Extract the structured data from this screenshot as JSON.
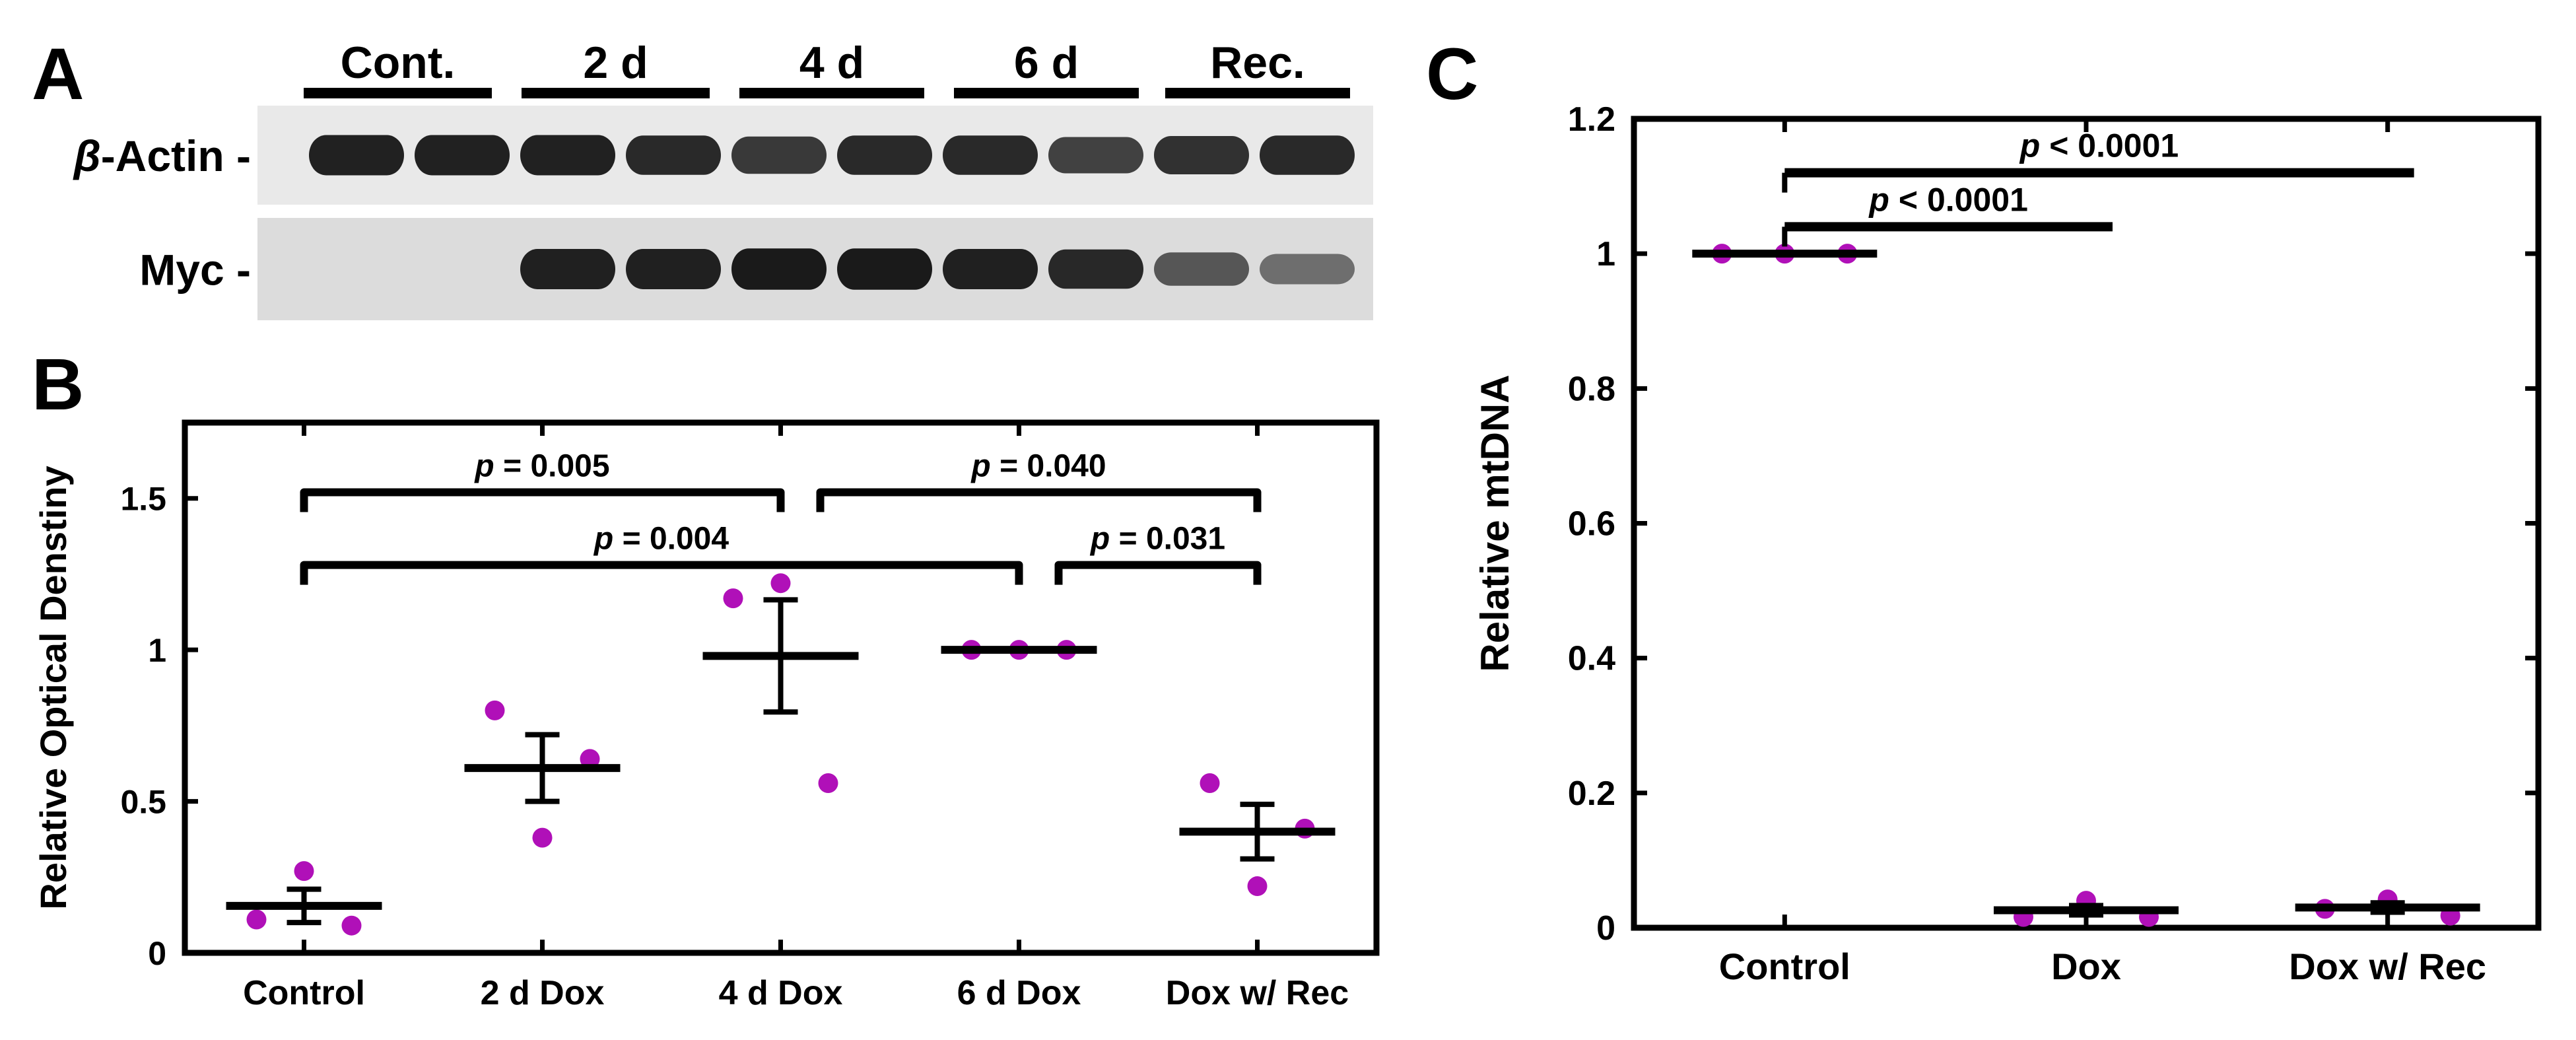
{
  "panels": {
    "a": "A",
    "b": "B",
    "c": "C"
  },
  "blot": {
    "groups": [
      "Cont.",
      "2 d",
      "4 d",
      "6 d",
      "Rec."
    ],
    "rows": [
      {
        "label_prefix": "β",
        "label_suffix": "-Actin -",
        "intensity": [
          0.9,
          0.9,
          0.9,
          0.85,
          0.75,
          0.85,
          0.85,
          0.7,
          0.8,
          0.85
        ]
      },
      {
        "label_prefix": "",
        "label_suffix": "Myc -",
        "intensity": [
          0.0,
          0.0,
          0.9,
          0.9,
          0.95,
          0.95,
          0.9,
          0.85,
          0.55,
          0.4
        ]
      }
    ]
  },
  "colors": {
    "point": "#b010b8",
    "line": "#000000",
    "blot_bg_actin": "#e9e9e9",
    "blot_bg_myc": "#dcdcdc",
    "band": "#1a1a1a"
  },
  "chart_data": [
    {
      "id": "B",
      "type": "scatter",
      "title": "",
      "xlabel": "",
      "ylabel": "Relative Optical Denstiny",
      "ylim": [
        0,
        1.75
      ],
      "yticks": [
        0,
        0.5,
        1,
        1.5
      ],
      "ytick_labels": [
        "0",
        "0.5",
        "1",
        "1.5"
      ],
      "categories": [
        "Control",
        "2 d Dox",
        "4 d Dox",
        "6 d Dox",
        "Dox w/ Rec"
      ],
      "points": [
        [
          0.11,
          0.27,
          0.09
        ],
        [
          0.8,
          0.38,
          0.64
        ],
        [
          1.17,
          1.22,
          0.56
        ],
        [
          1.0,
          1.0,
          1.0
        ],
        [
          0.56,
          0.22,
          0.41
        ]
      ],
      "mean": [
        0.155,
        0.61,
        0.98,
        1.0,
        0.4
      ],
      "sem": [
        0.055,
        0.11,
        0.185,
        0.0,
        0.09
      ],
      "comparisons": [
        {
          "from": 0,
          "to": 2,
          "level": 1.52,
          "label_prefix": "p",
          "label_suffix": " = 0.005"
        },
        {
          "from": 2,
          "to": 4,
          "level": 1.52,
          "label_prefix": "p",
          "label_suffix": " = 0.040"
        },
        {
          "from": 0,
          "to": 3,
          "level": 1.28,
          "label_prefix": "p",
          "label_suffix": " = 0.004"
        },
        {
          "from": 3,
          "to": 4,
          "level": 1.28,
          "label_prefix": "p",
          "label_suffix": " = 0.031"
        }
      ]
    },
    {
      "id": "C",
      "type": "scatter",
      "title": "",
      "xlabel": "",
      "ylabel": "Relative mtDNA",
      "ylim": [
        0,
        1.2
      ],
      "yticks": [
        0,
        0.2,
        0.4,
        0.6,
        0.8,
        1,
        1.2
      ],
      "ytick_labels": [
        "0",
        "0.2",
        "0.4",
        "0.6",
        "0.8",
        "1",
        "1.2"
      ],
      "categories": [
        "Control",
        "Dox",
        "Dox w/ Rec"
      ],
      "points": [
        [
          1.0,
          1.0,
          1.0
        ],
        [
          0.016,
          0.04,
          0.016
        ],
        [
          0.028,
          0.042,
          0.018
        ]
      ],
      "mean": [
        1.0,
        0.026,
        0.03
      ],
      "sem": [
        0.0,
        0.007,
        0.007
      ],
      "comparisons": [
        {
          "from": 0,
          "to": 2,
          "level": 1.12,
          "label_prefix": "p",
          "label_suffix": " < 0.0001"
        },
        {
          "from": 0,
          "to": 1,
          "level": 1.04,
          "label_prefix": "p",
          "label_suffix": " < 0.0001"
        }
      ]
    }
  ]
}
